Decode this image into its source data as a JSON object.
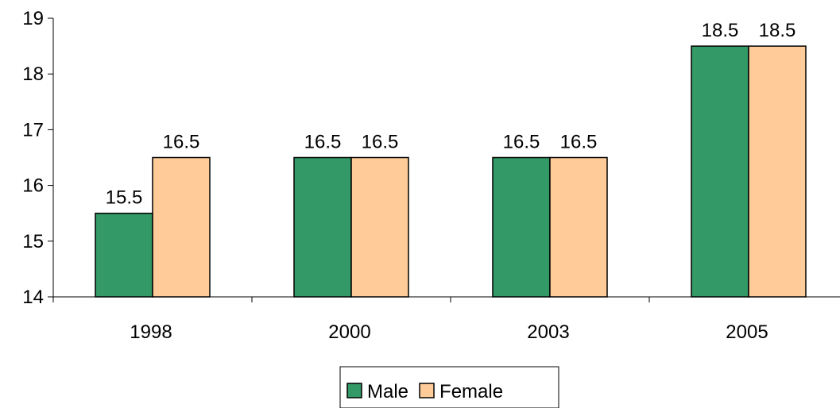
{
  "chart_data": {
    "type": "bar",
    "categories": [
      "1998",
      "2000",
      "2003",
      "2005"
    ],
    "series": [
      {
        "name": "Male",
        "values": [
          15.5,
          16.5,
          16.5,
          18.5
        ],
        "color": "#339966"
      },
      {
        "name": "Female",
        "values": [
          16.5,
          16.5,
          16.5,
          18.5
        ],
        "color": "#FFCC99"
      }
    ],
    "ylim": [
      14,
      19
    ],
    "yticks": [
      14,
      15,
      16,
      17,
      18,
      19
    ],
    "data_labels": true,
    "grid": false,
    "legend_position": "bottom"
  }
}
